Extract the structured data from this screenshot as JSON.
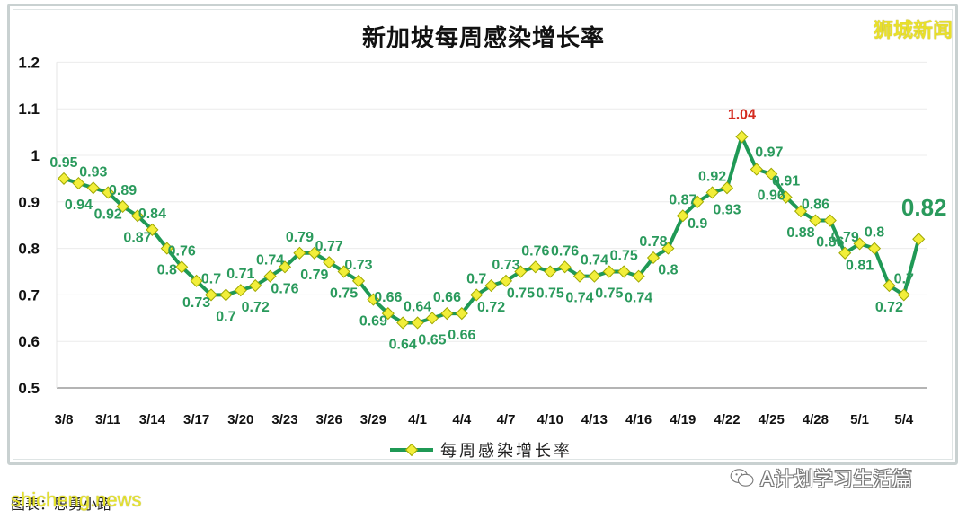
{
  "page": {
    "title": "新加坡每周感染增长率",
    "brand": "狮城新闻",
    "caption": "图表：思勇小路",
    "watermark": "shicheng.news",
    "wechat_account": "A计划学习生活篇",
    "colors": {
      "line": "#1f9955",
      "marker_fill": "#f2ee3a",
      "marker_stroke": "#9fa800",
      "label": "#2a9a5c",
      "peak_label": "#d42a1e",
      "axis_text": "#111111",
      "gridline": "#ececec"
    }
  },
  "chart_data": {
    "type": "line",
    "title": "新加坡每周感染增长率",
    "xlabel": "",
    "ylabel": "",
    "ylim": [
      0.5,
      1.2
    ],
    "yticks": [
      "1.2",
      "1.1",
      "1",
      "0.9",
      "0.8",
      "0.7",
      "0.6",
      "0.5"
    ],
    "xtick_labels": [
      "3/8",
      "3/11",
      "3/14",
      "3/17",
      "3/20",
      "3/23",
      "3/26",
      "3/29",
      "4/1",
      "4/4",
      "4/7",
      "4/10",
      "4/13",
      "4/16",
      "4/19",
      "4/22",
      "4/25",
      "4/28",
      "5/1",
      "5/4"
    ],
    "grid": true,
    "legend_position": "bottom",
    "x": [
      "3/8",
      "3/9",
      "3/10",
      "3/11",
      "3/12",
      "3/13",
      "3/14",
      "3/15",
      "3/16",
      "3/17",
      "3/18",
      "3/19",
      "3/20",
      "3/21",
      "3/22",
      "3/23",
      "3/24",
      "3/25",
      "3/26",
      "3/27",
      "3/28",
      "3/29",
      "3/30",
      "3/31",
      "4/1",
      "4/2",
      "4/3",
      "4/4",
      "4/5",
      "4/6",
      "4/7",
      "4/8",
      "4/9",
      "4/10",
      "4/11",
      "4/12",
      "4/13",
      "4/14",
      "4/15",
      "4/16",
      "4/17",
      "4/18",
      "4/19",
      "4/20",
      "4/21",
      "4/22",
      "4/23",
      "4/24",
      "4/25",
      "4/26",
      "4/27",
      "4/28",
      "4/29",
      "4/30",
      "5/1",
      "5/2",
      "5/3",
      "5/4",
      "5/5"
    ],
    "series": [
      {
        "name": "每周感染增长率",
        "values": [
          0.95,
          0.94,
          0.93,
          0.92,
          0.89,
          0.87,
          0.84,
          0.8,
          0.76,
          0.73,
          0.7,
          0.7,
          0.71,
          0.72,
          0.74,
          0.76,
          0.79,
          0.79,
          0.77,
          0.75,
          0.73,
          0.69,
          0.66,
          0.64,
          0.64,
          0.65,
          0.66,
          0.66,
          0.7,
          0.72,
          0.73,
          0.75,
          0.76,
          0.75,
          0.76,
          0.74,
          0.74,
          0.75,
          0.75,
          0.74,
          0.78,
          0.8,
          0.87,
          0.9,
          0.92,
          0.93,
          1.04,
          0.97,
          0.96,
          0.91,
          0.88,
          0.86,
          0.86,
          0.79,
          0.81,
          0.8,
          0.72,
          0.7,
          0.82
        ],
        "label_positions": [
          "a",
          "b",
          "a",
          "b",
          "a",
          "b",
          "a",
          "b",
          "a",
          "b",
          "a",
          "b",
          "a",
          "b",
          "a",
          "b",
          "a",
          "b",
          "a",
          "b",
          "a",
          "b",
          "a",
          "b",
          "a",
          "b",
          "a",
          "b",
          "a",
          "b",
          "a",
          "b",
          "a",
          "b",
          "a",
          "b",
          "a",
          "b",
          "a",
          "b",
          "a",
          "b",
          "a",
          "b",
          "a",
          "b",
          "a",
          "a",
          "b",
          "a",
          "b",
          "a",
          "b",
          "a",
          "b",
          "a",
          "b",
          "a",
          "a"
        ]
      }
    ],
    "annotations": [
      {
        "x": "4/23",
        "text": "1.04",
        "color": "#d42a1e",
        "note": "peak"
      },
      {
        "x": "5/5",
        "text": "0.82",
        "style": "bold-large",
        "note": "latest"
      }
    ]
  }
}
